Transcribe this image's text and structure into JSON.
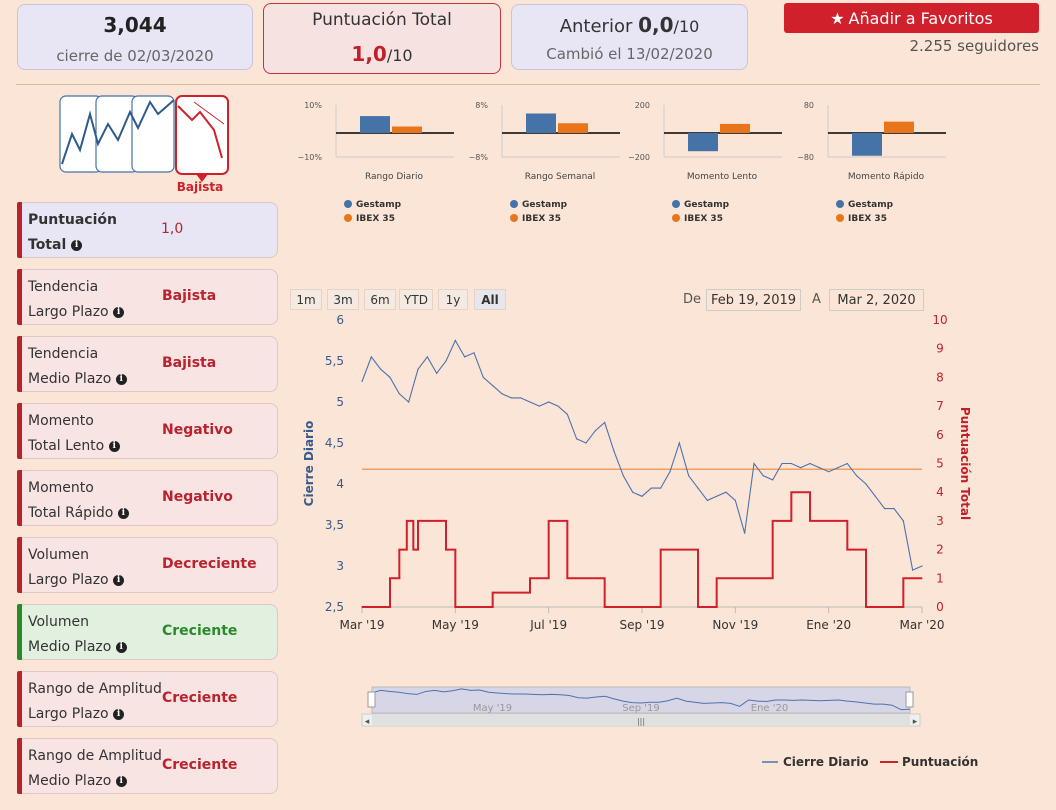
{
  "header": {
    "price": "3,044",
    "price_date": "cierre de 02/03/2020",
    "score_title": "Puntuación Total",
    "score_value": "1,0",
    "score_max": "/10",
    "prev_label": "Anterior",
    "prev_value": "0,0",
    "prev_max": "/10",
    "changed_label": "Cambió el 13/02/2020",
    "fav_label": "Añadir a Favoritos",
    "followers": "2.255 seguidores"
  },
  "trend_icon_label": "Bajista",
  "indicators": [
    {
      "label1": "Puntuación",
      "label2": "Total",
      "value": "1,0",
      "status": "neutral"
    },
    {
      "label1": "Tendencia",
      "label2": "Largo Plazo",
      "value": "Bajista",
      "status": "neg"
    },
    {
      "label1": "Tendencia",
      "label2": "Medio Plazo",
      "value": "Bajista",
      "status": "neg"
    },
    {
      "label1": "Momento",
      "label2": "Total Lento",
      "value": "Negativo",
      "status": "neg"
    },
    {
      "label1": "Momento",
      "label2": "Total Rápido",
      "value": "Negativo",
      "status": "neg"
    },
    {
      "label1": "Volumen",
      "label2": "Largo Plazo",
      "value": "Decreciente",
      "status": "neg"
    },
    {
      "label1": "Volumen",
      "label2": "Medio Plazo",
      "value": "Creciente",
      "status": "pos"
    },
    {
      "label1": "Rango de Amplitud",
      "label2": "Largo Plazo",
      "value": "Creciente",
      "status": "neg"
    },
    {
      "label1": "Rango de Amplitud",
      "label2": "Medio Plazo",
      "value": "Creciente",
      "status": "neg"
    }
  ],
  "mini_charts": [
    {
      "title": "Rango Diario",
      "ymax_label": "10%",
      "ymin_label": "−10%",
      "gestamp": 6.5,
      "ibex": 2.5,
      "scale": 10,
      "legend": [
        "Gestamp",
        "IBEX 35"
      ]
    },
    {
      "title": "Rango Semanal",
      "ymax_label": "8%",
      "ymin_label": "−8%",
      "gestamp": 6,
      "ibex": 3,
      "scale": 8,
      "legend": [
        "Gestamp",
        "IBEX 35"
      ]
    },
    {
      "title": "Momento Lento",
      "ymax_label": "200",
      "ymin_label": "−200",
      "gestamp": -140,
      "ibex": 70,
      "scale": 200,
      "legend": [
        "Gestamp",
        "IBEX 35"
      ]
    },
    {
      "title": "Momento Rápido",
      "ymax_label": "80",
      "ymin_label": "−80",
      "gestamp": -70,
      "ibex": 35,
      "scale": 80,
      "legend": [
        "Gestamp",
        "IBEX 35"
      ]
    }
  ],
  "colors": {
    "gestamp": "#4572a7",
    "ibex": "#e8751a",
    "score": "#d0202c",
    "neg": "#b8232e",
    "pos": "#2a8a2a"
  },
  "range_buttons": [
    "1m",
    "3m",
    "6m",
    "YTD",
    "1y",
    "All"
  ],
  "range_active": "All",
  "date_from_label": "De",
  "date_from": "Feb 19, 2019",
  "date_to_label": "A",
  "date_to": "Mar 2, 2020",
  "chart_data": {
    "type": "line",
    "ylabel_left": "Cierre Diario",
    "ylabel_right": "Puntuación Total",
    "ylim_left": [
      2.5,
      6
    ],
    "ylim_right": [
      0,
      10
    ],
    "yticks_left": [
      "2,5",
      "3",
      "3,5",
      "4",
      "4,5",
      "5",
      "5,5",
      "6"
    ],
    "yticks_right": [
      "0",
      "1",
      "2",
      "3",
      "4",
      "5",
      "6",
      "7",
      "8",
      "9",
      "10"
    ],
    "xticks": [
      "Mar '19",
      "May '19",
      "Jul '19",
      "Sep '19",
      "Nov '19",
      "Ene '20",
      "Mar '20"
    ],
    "navigator_ticks": [
      "May '19",
      "Sep '19",
      "Ene '20"
    ],
    "reference_line": 4.18,
    "series": [
      {
        "name": "Cierre Diario",
        "axis": "left",
        "x": [
          0,
          1,
          2,
          3,
          4,
          5,
          6,
          7,
          8,
          9,
          10,
          11,
          12,
          13,
          14,
          15,
          16,
          17,
          18,
          19,
          20,
          21,
          22,
          23,
          24,
          25,
          26,
          27,
          28,
          29,
          30,
          31,
          32,
          33,
          34,
          35,
          36,
          37,
          38,
          39,
          40,
          41,
          42,
          43,
          44,
          45,
          46,
          47,
          48,
          49,
          50,
          51,
          52,
          53,
          54,
          55,
          56,
          57,
          58,
          59,
          60
        ],
        "values": [
          5.25,
          5.55,
          5.4,
          5.3,
          5.1,
          5.0,
          5.4,
          5.55,
          5.35,
          5.5,
          5.75,
          5.55,
          5.6,
          5.3,
          5.2,
          5.1,
          5.05,
          5.05,
          5.0,
          4.95,
          5.0,
          4.95,
          4.85,
          4.55,
          4.5,
          4.65,
          4.75,
          4.4,
          4.1,
          3.9,
          3.85,
          3.95,
          3.95,
          4.15,
          4.5,
          4.1,
          3.95,
          3.8,
          3.85,
          3.9,
          3.8,
          3.4,
          4.25,
          4.1,
          4.05,
          4.25,
          4.25,
          4.2,
          4.25,
          4.2,
          4.15,
          4.2,
          4.25,
          4.1,
          4.0,
          3.85,
          3.7,
          3.7,
          3.55,
          2.95,
          3.0
        ]
      },
      {
        "name": "Puntuación",
        "axis": "right",
        "x": [
          0,
          2,
          2.5,
          3,
          4,
          4.8,
          5.5,
          6,
          6.5,
          7,
          8,
          9,
          10,
          12,
          14,
          16,
          18,
          20,
          22,
          24,
          26,
          28,
          30,
          32,
          34,
          36,
          38,
          40,
          42,
          44,
          46,
          48,
          50,
          52,
          54,
          56,
          58,
          60
        ],
        "values": [
          0,
          0,
          0,
          1,
          2,
          3,
          2,
          3,
          3,
          3,
          3,
          2,
          0,
          0,
          0.5,
          0.5,
          1,
          3,
          1,
          1,
          0,
          0,
          0,
          2,
          2,
          0,
          1,
          1,
          1,
          3,
          4,
          3,
          3,
          2,
          0,
          0,
          1,
          1
        ]
      }
    ]
  }
}
